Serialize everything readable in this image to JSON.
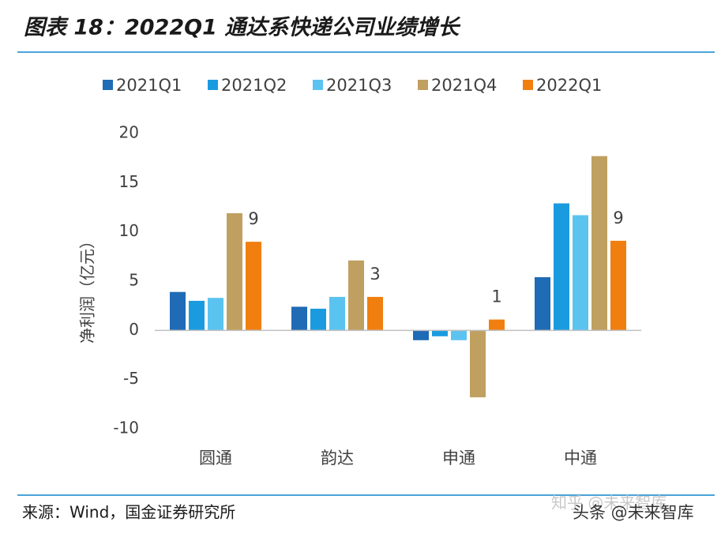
{
  "chart_data": {
    "type": "bar",
    "title": "图表 18：2022Q1 通达系快递公司业绩增长",
    "ylabel": "净利润（亿元）",
    "source": "来源：Wind，国金证券研究所",
    "watermarks": [
      "知乎 @未来智库",
      "头条 @未来智库"
    ],
    "categories": [
      "圆通",
      "韵达",
      "申通",
      "中通"
    ],
    "series": [
      {
        "name": "2021Q1",
        "color": "#1f6bb5",
        "values": [
          3.9,
          2.4,
          -1.0,
          5.4
        ]
      },
      {
        "name": "2021Q2",
        "color": "#1a9be0",
        "values": [
          3.0,
          2.2,
          -0.6,
          12.9
        ]
      },
      {
        "name": "2021Q3",
        "color": "#5bc3f0",
        "values": [
          3.3,
          3.4,
          -1.0,
          11.7
        ]
      },
      {
        "name": "2021Q4",
        "color": "#c0a060",
        "values": [
          11.9,
          7.1,
          -6.8,
          17.7
        ]
      },
      {
        "name": "2022Q1",
        "color": "#f07f10",
        "values": [
          9.0,
          3.4,
          1.1,
          9.1
        ],
        "value_labels": [
          "9",
          "3",
          "1",
          "9"
        ]
      }
    ],
    "ylim": [
      -10,
      20
    ],
    "yticks": [
      -10,
      -5,
      0,
      5,
      10,
      15,
      20
    ],
    "grid": false
  }
}
